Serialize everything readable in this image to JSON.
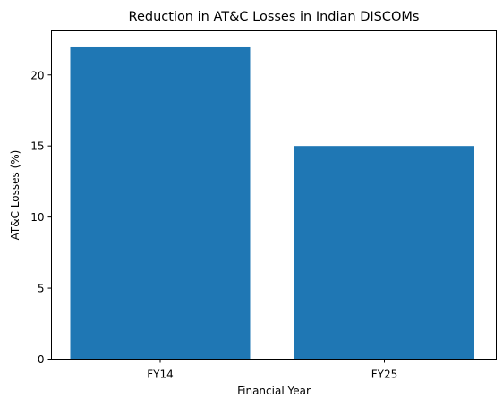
{
  "chart_data": {
    "type": "bar",
    "title": "Reduction in AT&C Losses in Indian DISCOMs",
    "xlabel": "Financial Year",
    "ylabel": "AT&C Losses (%)",
    "categories": [
      "FY14",
      "FY25"
    ],
    "values": [
      22,
      15
    ],
    "ylim": [
      0,
      23.1
    ],
    "yticks": [
      0,
      5,
      10,
      15,
      20
    ],
    "grid": false,
    "legend": "none",
    "bar_color": "#1f77b4"
  }
}
